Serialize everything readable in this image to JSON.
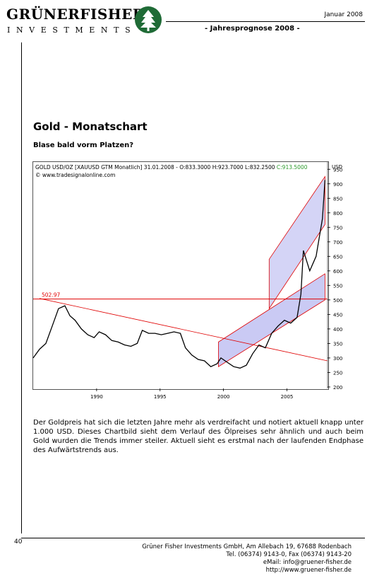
{
  "header": {
    "company_top": "GRÜNERFISHER",
    "company_bottom": "INVESTMENTS",
    "logo_icon": "tree-icon",
    "date": "Januar 2008",
    "subtitle": "- Jahresprognose 2008 -"
  },
  "article": {
    "title": "Gold - Monatschart",
    "subtitle": "Blase bald vorm Platzen?",
    "body": "Der Goldpreis hat sich die letzten Jahre mehr als verdreifacht und notiert aktuell knapp unter 1.000 USD. Dieses Chartbild sieht dem Verlauf des Ölpreises sehr ähnlich und auch beim Gold wurden die Trends immer steiler. Aktuell sieht es erstmal nach der laufenden Endphase des Aufwärtstrends aus."
  },
  "chart_info": {
    "line1": "GOLD USD/OZ [XAUUSD GTM Monatlich] 31.01.2008 - O:833.3000 H:923.7000 L:832.2500",
    "close": "C:913.5000",
    "line2": "© www.tradesignalonline.com"
  },
  "chart_data": {
    "type": "line",
    "series": [
      {
        "x": [
          1985.0,
          1985.5,
          1986.0,
          1986.5,
          1987.0,
          1987.5,
          1987.9,
          1988.3,
          1988.8,
          1989.3,
          1989.8,
          1990.2,
          1990.7,
          1991.2,
          1991.7,
          1992.2,
          1992.7,
          1993.2,
          1993.6,
          1994.1,
          1994.6,
          1995.1,
          1995.6,
          1996.1,
          1996.6,
          1997.0,
          1997.5,
          1998.0,
          1998.5,
          1999.0,
          1999.5,
          1999.8,
          2000.3,
          2000.8,
          2001.3,
          2001.8,
          2002.3,
          2002.8,
          2003.3,
          2003.8,
          2004.3,
          2004.8,
          2005.3,
          2005.8,
          2006.1,
          2006.3,
          2006.8,
          2007.3,
          2007.8,
          2008.0
        ],
        "values": [
          300,
          330,
          350,
          410,
          470,
          480,
          445,
          430,
          400,
          380,
          370,
          390,
          380,
          360,
          355,
          345,
          340,
          350,
          395,
          385,
          385,
          380,
          385,
          390,
          385,
          335,
          310,
          295,
          290,
          270,
          280,
          300,
          285,
          270,
          265,
          275,
          315,
          345,
          335,
          385,
          410,
          430,
          420,
          440,
          520,
          670,
          600,
          650,
          780,
          913
        ]
      }
    ],
    "x_ticks": [
      "1990",
      "1995",
      "2000",
      "2005"
    ],
    "y_ticks": [
      "200",
      "250",
      "300",
      "350",
      "400",
      "450",
      "500",
      "550",
      "600",
      "650",
      "700",
      "750",
      "800",
      "850",
      "900",
      "950"
    ],
    "y_unit": "USD",
    "level_label": "502.97",
    "level": 502.97,
    "xlim": [
      1985,
      2008.2
    ],
    "ylim": [
      195,
      975
    ],
    "colors": {
      "price": "#000000",
      "level": "#e00000",
      "trend": "#e00000",
      "channel": "#b8b8f0"
    }
  },
  "footer": {
    "page": "40",
    "line1": "Grüner Fisher Investments GmbH, Am Allebach 19, 67688 Rodenbach",
    "line2": "Tel. (06374) 9143-0, Fax (06374) 9143-20",
    "line3": "eMail: info@gruener-fisher.de",
    "line4": "http://www.gruener-fisher.de"
  }
}
